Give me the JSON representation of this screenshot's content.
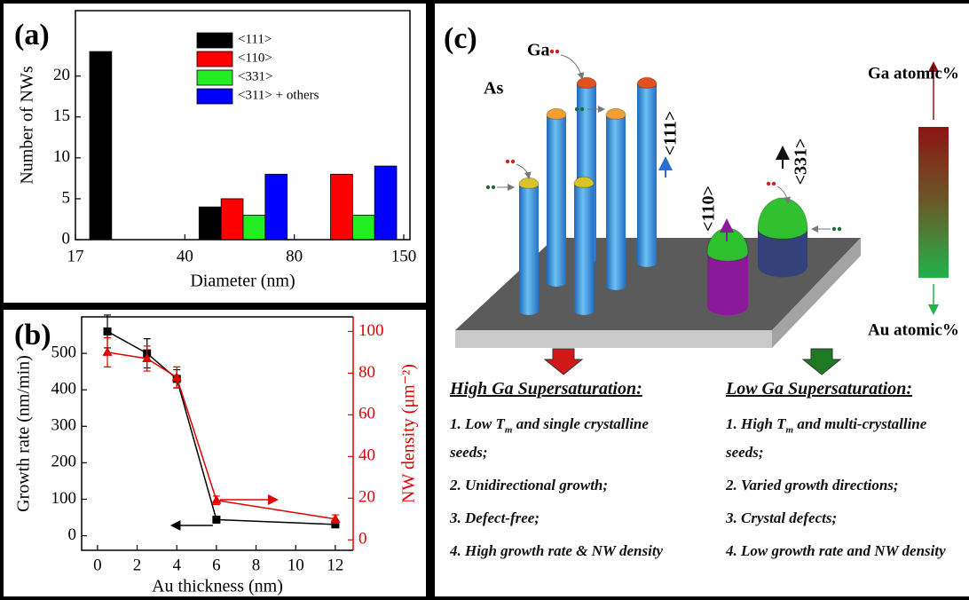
{
  "chart_data": [
    {
      "type": "histogram",
      "panel_label": "(a)",
      "xlabel": "Diameter (nm)",
      "ylabel": "Number of NWs",
      "bins": [
        17,
        40,
        80,
        150
      ],
      "series": [
        {
          "name": "<111>",
          "color": "#000000",
          "values": [
            23,
            4,
            0
          ]
        },
        {
          "name": "<110>",
          "color": "#ff0000",
          "values": [
            0,
            5,
            8
          ]
        },
        {
          "name": "<331>",
          "color": "#22ee22",
          "values": [
            0,
            3,
            3
          ]
        },
        {
          "name": "<311> +  others",
          "color": "#0000ff",
          "values": [
            0,
            8,
            9
          ]
        }
      ],
      "ylim": [
        0,
        28
      ],
      "yticks": [
        0,
        5,
        10,
        15,
        20
      ],
      "legend": "upper center"
    },
    {
      "type": "line",
      "panel_label": "(b)",
      "xlabel": "Au thickness (nm)",
      "ylabel": "Growth rate (nm/min)",
      "y2label": "NW density (μm⁻²)",
      "x": [
        0.5,
        2.5,
        4,
        6,
        12
      ],
      "series": [
        {
          "color": "#000000",
          "marker": "square",
          "values": [
            560,
            500,
            430,
            44,
            31
          ],
          "errors": [
            45,
            40,
            25,
            5,
            5
          ]
        },
        {
          "color": "#e00000",
          "marker": "triangle",
          "axis": "y2",
          "values": [
            90,
            87,
            78,
            19,
            10
          ],
          "errors": [
            7,
            6,
            5,
            2,
            2
          ]
        }
      ],
      "xlim": [
        -0.8,
        12.9
      ],
      "xticks": [
        0,
        2,
        4,
        6,
        8,
        10,
        12
      ],
      "ylim": [
        -40,
        600
      ],
      "yticks": [
        0,
        100,
        200,
        300,
        400,
        500
      ],
      "y2lim": [
        -5,
        107
      ],
      "y2ticks": [
        0,
        20,
        40,
        60,
        80,
        100
      ],
      "y2color": "#e00000"
    }
  ],
  "diagram": {
    "panel_label": "(c)",
    "labels": {
      "ga": "Ga",
      "as": "As",
      "d111": "<111>",
      "d110": "<110>",
      "d331": "<331>",
      "ga_atomic": "Ga atomic%",
      "au_atomic": "Au atomic%"
    },
    "high": {
      "heading": "High Ga Supersaturation:",
      "items": [
        {
          "pre": "1. Low ",
          "base": "T",
          "sub": "m",
          "post": " and single crystalline seeds;"
        },
        "2. Unidirectional growth;",
        "3. Defect-free;",
        "4. High growth rate & NW density"
      ]
    },
    "low": {
      "heading": "Low Ga Supersaturation:",
      "items": [
        {
          "pre": "1. High ",
          "base": "T",
          "sub": "m",
          "post": " and multi-crystalline seeds;"
        },
        "2. Varied growth directions;",
        "3. Crystal defects;",
        "4. Low growth rate and NW density"
      ]
    }
  }
}
